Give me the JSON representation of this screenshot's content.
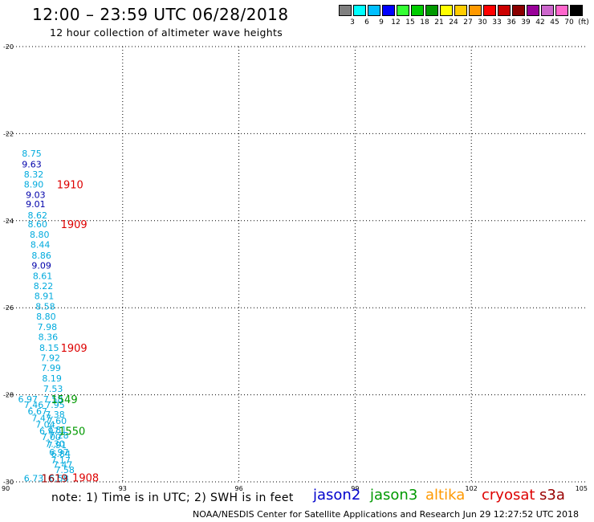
{
  "header": {
    "title": "12:00 – 23:59 UTC 06/28/2018",
    "subtitle": "12 hour collection of altimeter wave heights"
  },
  "color_scale": {
    "colors": [
      "#808080",
      "#00ffff",
      "#00bfff",
      "#0000ff",
      "#33ff33",
      "#00cc00",
      "#009900",
      "#ffff00",
      "#ffcc00",
      "#ff9900",
      "#ff0000",
      "#cc0000",
      "#8b0000",
      "#990099",
      "#cc66cc",
      "#ff66cc",
      "#000000"
    ],
    "labels": [
      "3",
      "6",
      "9",
      "12",
      "15",
      "18",
      "21",
      "24",
      "27",
      "30",
      "33",
      "36",
      "39",
      "42",
      "45",
      "70",
      "(ft)"
    ]
  },
  "satellites": [
    {
      "name": "jason2",
      "color": "#0000cc"
    },
    {
      "name": "jason3",
      "color": "#009900"
    },
    {
      "name": "altika",
      "color": "#ff9900"
    },
    {
      "name": "cryosat",
      "color": "#dd0000"
    },
    {
      "name": "s3a",
      "color": "#990000"
    }
  ],
  "note": "note: 1) Time is in UTC; 2) SWH is in feet",
  "footer": "NOAA/NESDIS Center for Satellite Applications and Research   Jun 29 12:27:52 UTC 2018",
  "chart_data": {
    "type": "scatter",
    "xlim": [
      90,
      105
    ],
    "ylim": [
      -30,
      -20
    ],
    "x_ticks": [
      "90",
      "93",
      "96",
      "99",
      "102",
      "105"
    ],
    "y_ticks": [
      "-20",
      "-22",
      "-24",
      "-26",
      "-28",
      "-30"
    ],
    "grid": true,
    "wave_heights": [
      {
        "x": 90.4,
        "y": -22.45,
        "label": "8.75",
        "color": "#00aadd"
      },
      {
        "x": 90.4,
        "y": -22.7,
        "label": "9.63",
        "color": "#0000aa"
      },
      {
        "x": 90.45,
        "y": -22.93,
        "label": "8.32",
        "color": "#00aadd"
      },
      {
        "x": 90.45,
        "y": -23.16,
        "label": "8.90",
        "color": "#00aadd"
      },
      {
        "x": 90.5,
        "y": -23.4,
        "label": "9.03",
        "color": "#0000aa"
      },
      {
        "x": 90.5,
        "y": -23.62,
        "label": "9.01",
        "color": "#0000aa"
      },
      {
        "x": 90.55,
        "y": -23.87,
        "label": "8.62",
        "color": "#00aadd"
      },
      {
        "x": 90.55,
        "y": -24.08,
        "label": "8.60",
        "color": "#00aadd"
      },
      {
        "x": 90.6,
        "y": -24.32,
        "label": "8.80",
        "color": "#00aadd"
      },
      {
        "x": 90.62,
        "y": -24.55,
        "label": "8.44",
        "color": "#00aadd"
      },
      {
        "x": 90.65,
        "y": -24.8,
        "label": "8.86",
        "color": "#00aadd"
      },
      {
        "x": 90.65,
        "y": -25.03,
        "label": "9.09",
        "color": "#0000aa"
      },
      {
        "x": 90.68,
        "y": -25.27,
        "label": "8.61",
        "color": "#00aadd"
      },
      {
        "x": 90.7,
        "y": -25.5,
        "label": "8.22",
        "color": "#00aadd"
      },
      {
        "x": 90.72,
        "y": -25.73,
        "label": "8.91",
        "color": "#00aadd"
      },
      {
        "x": 90.75,
        "y": -25.97,
        "label": "8.58",
        "color": "#00aadd"
      },
      {
        "x": 90.77,
        "y": -26.2,
        "label": "8.80",
        "color": "#00aadd"
      },
      {
        "x": 90.8,
        "y": -26.44,
        "label": "7.98",
        "color": "#00aadd"
      },
      {
        "x": 90.82,
        "y": -26.67,
        "label": "8.36",
        "color": "#00aadd"
      },
      {
        "x": 90.85,
        "y": -26.92,
        "label": "8.15",
        "color": "#00aadd"
      },
      {
        "x": 90.88,
        "y": -27.15,
        "label": "7.92",
        "color": "#00aadd"
      },
      {
        "x": 90.9,
        "y": -27.38,
        "label": "7.99",
        "color": "#00aadd"
      },
      {
        "x": 90.92,
        "y": -27.62,
        "label": "8.19",
        "color": "#00aadd"
      },
      {
        "x": 90.95,
        "y": -27.86,
        "label": "7.53",
        "color": "#00aadd"
      },
      {
        "x": 90.95,
        "y": -28.1,
        "label": "7.58",
        "color": "#00aadd"
      },
      {
        "x": 90.3,
        "y": -28.1,
        "label": "6.97",
        "color": "#00aadd"
      },
      {
        "x": 90.45,
        "y": -28.23,
        "label": "7.46",
        "color": "#00aadd"
      },
      {
        "x": 91.0,
        "y": -28.23,
        "label": "7.95",
        "color": "#00aadd"
      },
      {
        "x": 90.55,
        "y": -28.38,
        "label": "6.67",
        "color": "#00aadd"
      },
      {
        "x": 91.0,
        "y": -28.45,
        "label": "7.38",
        "color": "#00aadd"
      },
      {
        "x": 90.65,
        "y": -28.53,
        "label": "7.47",
        "color": "#00aadd"
      },
      {
        "x": 91.05,
        "y": -28.6,
        "label": "7.60",
        "color": "#00aadd"
      },
      {
        "x": 90.75,
        "y": -28.68,
        "label": "7.04",
        "color": "#00aadd"
      },
      {
        "x": 90.85,
        "y": -28.83,
        "label": "6.97",
        "color": "#00aadd"
      },
      {
        "x": 91.05,
        "y": -28.8,
        "label": "7.81",
        "color": "#00aadd"
      },
      {
        "x": 91.1,
        "y": -28.93,
        "label": "7.28",
        "color": "#00aadd"
      },
      {
        "x": 90.9,
        "y": -28.97,
        "label": "7.00",
        "color": "#00aadd"
      },
      {
        "x": 91.0,
        "y": -29.12,
        "label": "7.30",
        "color": "#00aadd"
      },
      {
        "x": 91.05,
        "y": -29.15,
        "label": "7.91",
        "color": "#00aadd"
      },
      {
        "x": 91.1,
        "y": -29.32,
        "label": "6.97",
        "color": "#00aadd"
      },
      {
        "x": 91.15,
        "y": -29.35,
        "label": "6.84",
        "color": "#00aadd"
      },
      {
        "x": 91.15,
        "y": -29.5,
        "label": "7.17",
        "color": "#00aadd"
      },
      {
        "x": 91.2,
        "y": -29.6,
        "label": "7.47",
        "color": "#00aadd"
      },
      {
        "x": 91.25,
        "y": -29.72,
        "label": "7.58",
        "color": "#00aadd"
      },
      {
        "x": 90.45,
        "y": -29.92,
        "label": "6.73",
        "color": "#00aadd"
      },
      {
        "x": 91.1,
        "y": -29.92,
        "label": "6.58",
        "color": "#00aadd"
      }
    ],
    "pass_times": [
      {
        "x": 91.3,
        "y": -23.16,
        "label": "1910",
        "color": "#dd0000"
      },
      {
        "x": 91.4,
        "y": -24.08,
        "label": "1909",
        "color": "#dd0000"
      },
      {
        "x": 91.4,
        "y": -26.92,
        "label": "1909",
        "color": "#dd0000"
      },
      {
        "x": 91.15,
        "y": -28.1,
        "label": "1549",
        "color": "#009900"
      },
      {
        "x": 91.35,
        "y": -28.83,
        "label": "1550",
        "color": "#009900"
      },
      {
        "x": 91.7,
        "y": -29.9,
        "label": "1908",
        "color": "#dd0000"
      },
      {
        "x": 90.9,
        "y": -29.92,
        "label": "1619",
        "color": "#990000"
      }
    ]
  }
}
